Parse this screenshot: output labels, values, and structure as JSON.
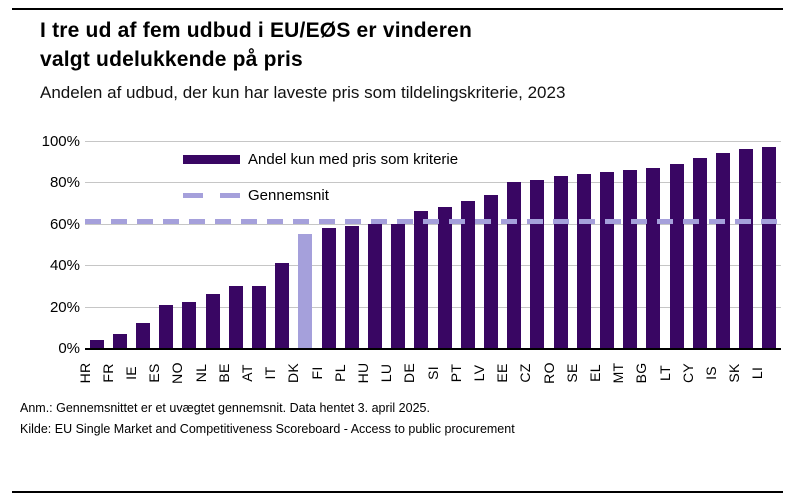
{
  "header": {
    "title_line1": "I tre ud af fem udbud i EU/EØS er vinderen",
    "title_line2": "valgt udelukkende på pris",
    "subtitle": "Andelen af udbud, der kun har laveste pris som tildelingskriterie, 2023"
  },
  "legend": {
    "series_label": "Andel kun med pris som kriterie",
    "average_label": "Gennemsnit"
  },
  "chart_data": {
    "type": "bar",
    "title": "Andelen af udbud, der kun har laveste pris som tildelingskriterie, 2023",
    "categories": [
      "HR",
      "FR",
      "IE",
      "ES",
      "NO",
      "NL",
      "BE",
      "AT",
      "IT",
      "DK",
      "FI",
      "PL",
      "HU",
      "LU",
      "DE",
      "SI",
      "PT",
      "LV",
      "EE",
      "CZ",
      "RO",
      "SE",
      "EL",
      "MT",
      "BG",
      "LT",
      "CY",
      "IS",
      "SK",
      "LI"
    ],
    "values": [
      4,
      7,
      12,
      21,
      22,
      26,
      30,
      30,
      41,
      55,
      58,
      59,
      60,
      60,
      66,
      68,
      71,
      74,
      80,
      81,
      83,
      84,
      85,
      86,
      87,
      89,
      92,
      94,
      96,
      97
    ],
    "highlight_category": "DK",
    "average_value": 61,
    "unit": "%",
    "ylim": [
      0,
      100
    ],
    "ytick_values": [
      0,
      20,
      40,
      60,
      80,
      100
    ],
    "ytick_labels": [
      "0%",
      "20%",
      "40%",
      "60%",
      "80%",
      "100%"
    ],
    "grid": "horizontal",
    "legend_position": "inside-top-left",
    "colors": {
      "bar": "#390663",
      "highlight_bar": "#a5a0db",
      "average_line": "#a5a0db",
      "gridline": "#c6c6c6",
      "axis": "#000000"
    }
  },
  "footer": {
    "note": "Anm.: Gennemsnittet er et uvægtet gennemsnit. Data hentet 3. april 2025.",
    "source": "Kilde: EU Single Market and Competitiveness Scoreboard - Access to public procurement"
  }
}
